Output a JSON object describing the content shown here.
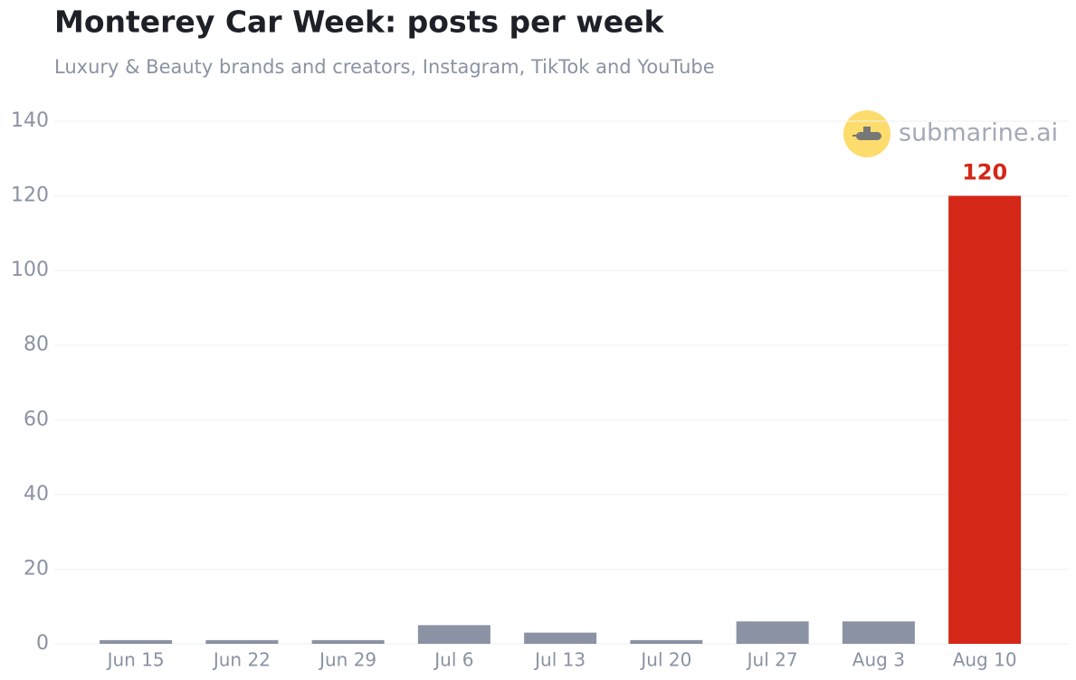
{
  "chart_data": {
    "type": "bar",
    "title": "Monterey Car Week: posts per week",
    "subtitle": "Luxury & Beauty brands and creators, Instagram, TikTok and YouTube",
    "watermark": "submarine.ai",
    "categories": [
      "Jun 15",
      "Jun 22",
      "Jun 29",
      "Jul 6",
      "Jul 13",
      "Jul 20",
      "Jul 27",
      "Aug 3",
      "Aug 10"
    ],
    "values": [
      1,
      1,
      1,
      5,
      3,
      1,
      6,
      6,
      120
    ],
    "colors": [
      "#8a92a3",
      "#8a92a3",
      "#8a92a3",
      "#8a92a3",
      "#8a92a3",
      "#8a92a3",
      "#8a92a3",
      "#8a92a3",
      "#d42718"
    ],
    "label_color": "#d42718",
    "ylim": [
      0,
      140
    ],
    "yticks": [
      0,
      20,
      40,
      60,
      80,
      100,
      120,
      140
    ],
    "grid": true
  }
}
